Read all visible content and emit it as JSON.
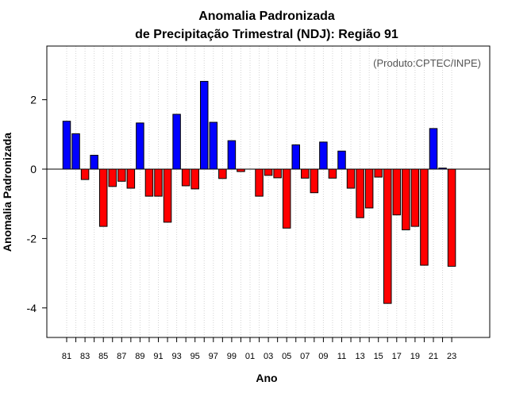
{
  "chart_data": {
    "type": "bar",
    "title": "Anomalia Padronizada",
    "subtitle": "de Precipitação Trimestral (NDJ): Região 91",
    "xlabel": "Ano",
    "ylabel": "Anomalia Padronizada",
    "credit": "(Produto:CPTEC/INPE)",
    "ylim": [
      -4.85,
      3.55
    ],
    "yticks": [
      -4,
      -2,
      0,
      2
    ],
    "grid": true,
    "colors": {
      "positive": "#0000ff",
      "negative": "#ff0000"
    },
    "categories": [
      "81",
      "82",
      "83",
      "84",
      "85",
      "86",
      "87",
      "88",
      "89",
      "90",
      "91",
      "92",
      "93",
      "94",
      "95",
      "96",
      "97",
      "98",
      "99",
      "00",
      "01",
      "02",
      "03",
      "04",
      "05",
      "06",
      "07",
      "08",
      "09",
      "10",
      "11",
      "12",
      "13",
      "14",
      "15",
      "16",
      "17",
      "18",
      "19",
      "20",
      "21",
      "22",
      "23"
    ],
    "tick_labels": [
      "81",
      "83",
      "85",
      "87",
      "89",
      "91",
      "93",
      "95",
      "97",
      "99",
      "01",
      "03",
      "05",
      "07",
      "09",
      "11",
      "13",
      "15",
      "17",
      "19",
      "21",
      "23"
    ],
    "values": [
      1.38,
      1.02,
      -0.3,
      0.4,
      -1.65,
      -0.5,
      -0.35,
      -0.55,
      1.33,
      -0.78,
      -0.78,
      -1.53,
      1.58,
      -0.48,
      -0.57,
      2.53,
      1.35,
      -0.27,
      0.82,
      -0.07,
      0.0,
      -0.78,
      -0.18,
      -0.25,
      -1.7,
      0.7,
      -0.26,
      -0.68,
      0.78,
      -0.26,
      0.52,
      -0.55,
      -1.4,
      -1.12,
      -0.23,
      -3.87,
      -1.32,
      -1.75,
      -1.65,
      -2.77,
      1.17,
      0.03,
      -2.8
    ]
  }
}
